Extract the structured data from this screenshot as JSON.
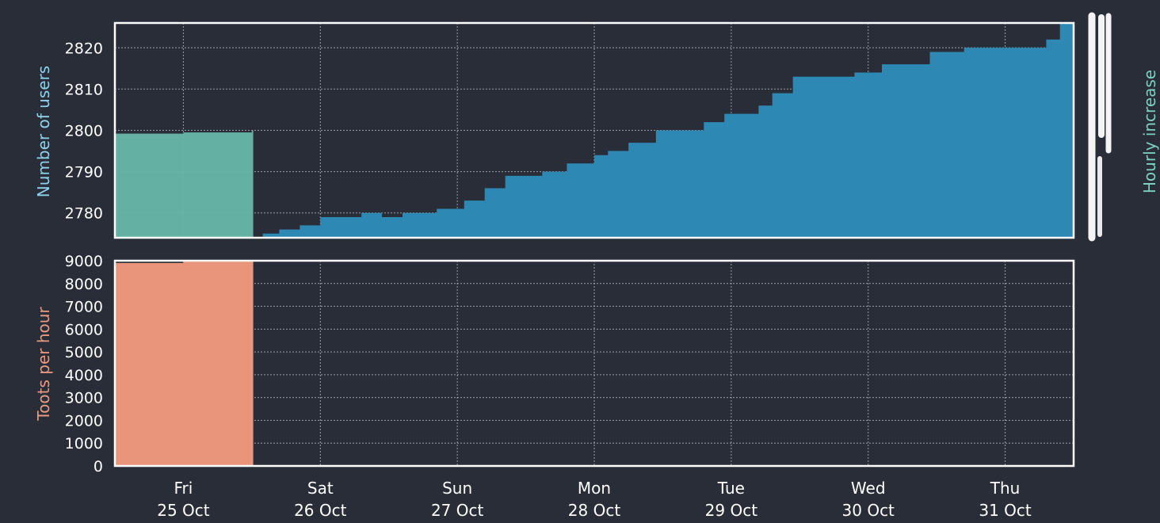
{
  "colors": {
    "background": "#282d38",
    "frame": "#ffffff",
    "grid": "#c8cbd2",
    "users_fill": "#2e88b4",
    "users_label": "#8dd2ea",
    "hourly_fill": "#67b8aa",
    "hourly_label": "#7ed1c1",
    "toots_fill": "#e9957c",
    "toots_label": "#ea9a80"
  },
  "chart_data": [
    {
      "type": "area",
      "name": "users-panel",
      "ylabel": "Number of users",
      "ylabel_right": "Hourly increase",
      "xlim": [
        0,
        7
      ],
      "ylim": [
        2774,
        2826
      ],
      "yticks": [
        2780,
        2790,
        2800,
        2810,
        2820
      ],
      "grid": true,
      "series": [
        {
          "name": "Number of users",
          "x": [
            0,
            1.0,
            1.08,
            1.2,
            1.35,
            1.5,
            1.8,
            1.95,
            2.1,
            2.35,
            2.55,
            2.7,
            2.85,
            3.0,
            3.12,
            3.3,
            3.5,
            3.6,
            3.75,
            3.95,
            4.1,
            4.3,
            4.45,
            4.6,
            4.7,
            4.8,
            4.95,
            5.1,
            5.4,
            5.6,
            5.75,
            5.95,
            6.2,
            6.5,
            6.65,
            6.8,
            6.9,
            7.0
          ],
          "y": [
            null,
            null,
            2775,
            2776,
            2777,
            2779,
            2780,
            2779,
            2780,
            2781,
            2783,
            2786,
            2789,
            2789,
            2790,
            2792,
            2794,
            2795,
            2797,
            2800,
            2800,
            2802,
            2804,
            2804,
            2806,
            2809,
            2813,
            2813,
            2814,
            2816,
            2816,
            2819,
            2820,
            2820,
            2820,
            2822,
            2826,
            2826
          ]
        },
        {
          "name": "Hourly increase",
          "x": [
            0,
            0.5,
            1.0,
            1.01
          ],
          "y": [
            2799.2,
            2799.5,
            2800,
            2775
          ]
        }
      ]
    },
    {
      "type": "area",
      "name": "toots-panel",
      "ylabel": "Toots per hour",
      "xlim": [
        0,
        7
      ],
      "ylim": [
        0,
        9000
      ],
      "yticks": [
        0,
        1000,
        2000,
        3000,
        4000,
        5000,
        6000,
        7000,
        8000,
        9000
      ],
      "grid": true,
      "series": [
        {
          "name": "Toots per hour",
          "x": [
            0,
            0.5,
            1.0,
            1.01
          ],
          "y": [
            8900,
            9000,
            9000,
            0
          ]
        }
      ]
    }
  ],
  "x_axis": {
    "ticks": [
      {
        "x": 0.5,
        "day": "Fri",
        "date": "25 Oct"
      },
      {
        "x": 1.5,
        "day": "Sat",
        "date": "26 Oct"
      },
      {
        "x": 2.5,
        "day": "Sun",
        "date": "27 Oct"
      },
      {
        "x": 3.5,
        "day": "Mon",
        "date": "28 Oct"
      },
      {
        "x": 4.5,
        "day": "Tue",
        "date": "29 Oct"
      },
      {
        "x": 5.5,
        "day": "Wed",
        "date": "30 Oct"
      },
      {
        "x": 6.5,
        "day": "Thu",
        "date": "31 Oct"
      }
    ]
  }
}
